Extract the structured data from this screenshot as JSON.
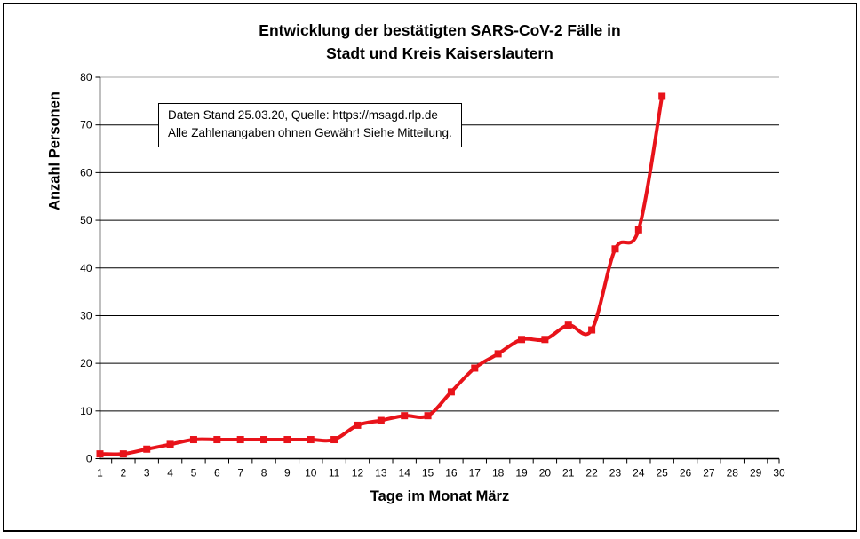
{
  "chart": {
    "title_line1": "Entwicklung der bestätigten SARS-CoV-2 Fälle in",
    "title_line2": "Stadt und Kreis Kaiserslautern",
    "annotation_line1": "Daten Stand 25.03.20, Quelle: https://msagd.rlp.de",
    "annotation_line2": "Alle Zahlenangaben ohnen Gewähr! Siehe Mitteilung.",
    "ylabel": "Anzahl Personen",
    "xlabel": "Tage im Monat März"
  },
  "chart_data": {
    "type": "line",
    "title": "Entwicklung der bestätigten SARS-CoV-2 Fälle in Stadt und Kreis Kaiserslautern",
    "xlabel": "Tage im Monat März",
    "ylabel": "Anzahl Personen",
    "x": [
      1,
      2,
      3,
      4,
      5,
      6,
      7,
      8,
      9,
      10,
      11,
      12,
      13,
      14,
      15,
      16,
      17,
      18,
      19,
      20,
      21,
      22,
      23,
      24,
      25
    ],
    "values": [
      1,
      1,
      2,
      3,
      4,
      4,
      4,
      4,
      4,
      4,
      4,
      7,
      8,
      9,
      9,
      14,
      19,
      22,
      25,
      25,
      28,
      27,
      44,
      48,
      76
    ],
    "x_tick_labels": [
      1,
      2,
      3,
      4,
      5,
      6,
      7,
      8,
      9,
      10,
      11,
      12,
      13,
      14,
      15,
      16,
      17,
      18,
      19,
      20,
      21,
      22,
      23,
      24,
      25,
      26,
      27,
      28,
      29,
      30
    ],
    "y_ticks": [
      0,
      10,
      20,
      30,
      40,
      50,
      60,
      70,
      80
    ],
    "xlim": [
      1,
      30
    ],
    "ylim": [
      0,
      80
    ],
    "grid": "horizontal",
    "legend": "none",
    "smoothed_line": true,
    "marker": "square",
    "line_color": "#e8131a",
    "gridline_color": "#000000",
    "plot_top_border_color": "#a6a6a6",
    "annotation": "Daten Stand 25.03.20, Quelle: https://msagd.rlp.de — Alle Zahlenangaben ohnen Gewähr! Siehe Mitteilung."
  }
}
